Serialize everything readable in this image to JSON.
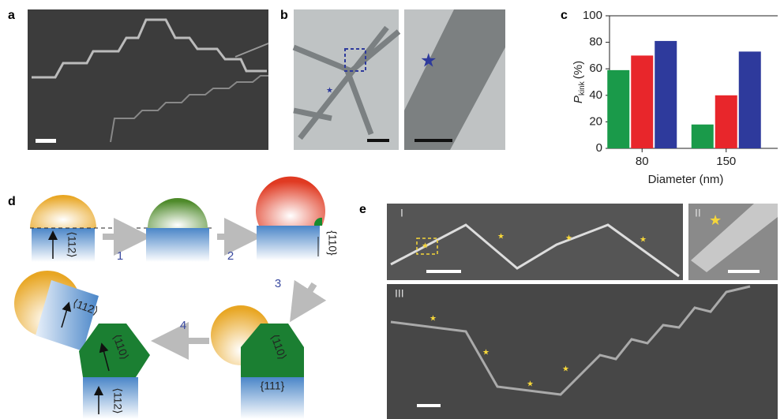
{
  "panel_labels": [
    "a",
    "b",
    "c",
    "d",
    "e"
  ],
  "chart_data": {
    "type": "bar",
    "x_label": "Diameter (nm)",
    "y_label": {
      "symbol": "P",
      "subscript": "kink",
      "unit": "(%)"
    },
    "categories": [
      "80",
      "150"
    ],
    "series": [
      {
        "color": "#1a9a4a",
        "values": [
          59,
          18
        ]
      },
      {
        "color": "#e8262b",
        "values": [
          70,
          40
        ]
      },
      {
        "color": "#2e3a9c",
        "values": [
          81,
          73
        ]
      }
    ],
    "ylim": [
      0,
      100
    ],
    "yticks": [
      0,
      20,
      40,
      60,
      80,
      100
    ]
  },
  "diagram_d": {
    "directions": [
      "⟨112⟩",
      "{110}",
      "⟨110⟩",
      "{111}",
      "⟨112⟩",
      "⟨110⟩",
      "⟨112⟩"
    ],
    "steps": [
      "1",
      "2",
      "3",
      "4"
    ]
  },
  "panel_e": {
    "subpanels": [
      "I",
      "II",
      "III"
    ]
  }
}
